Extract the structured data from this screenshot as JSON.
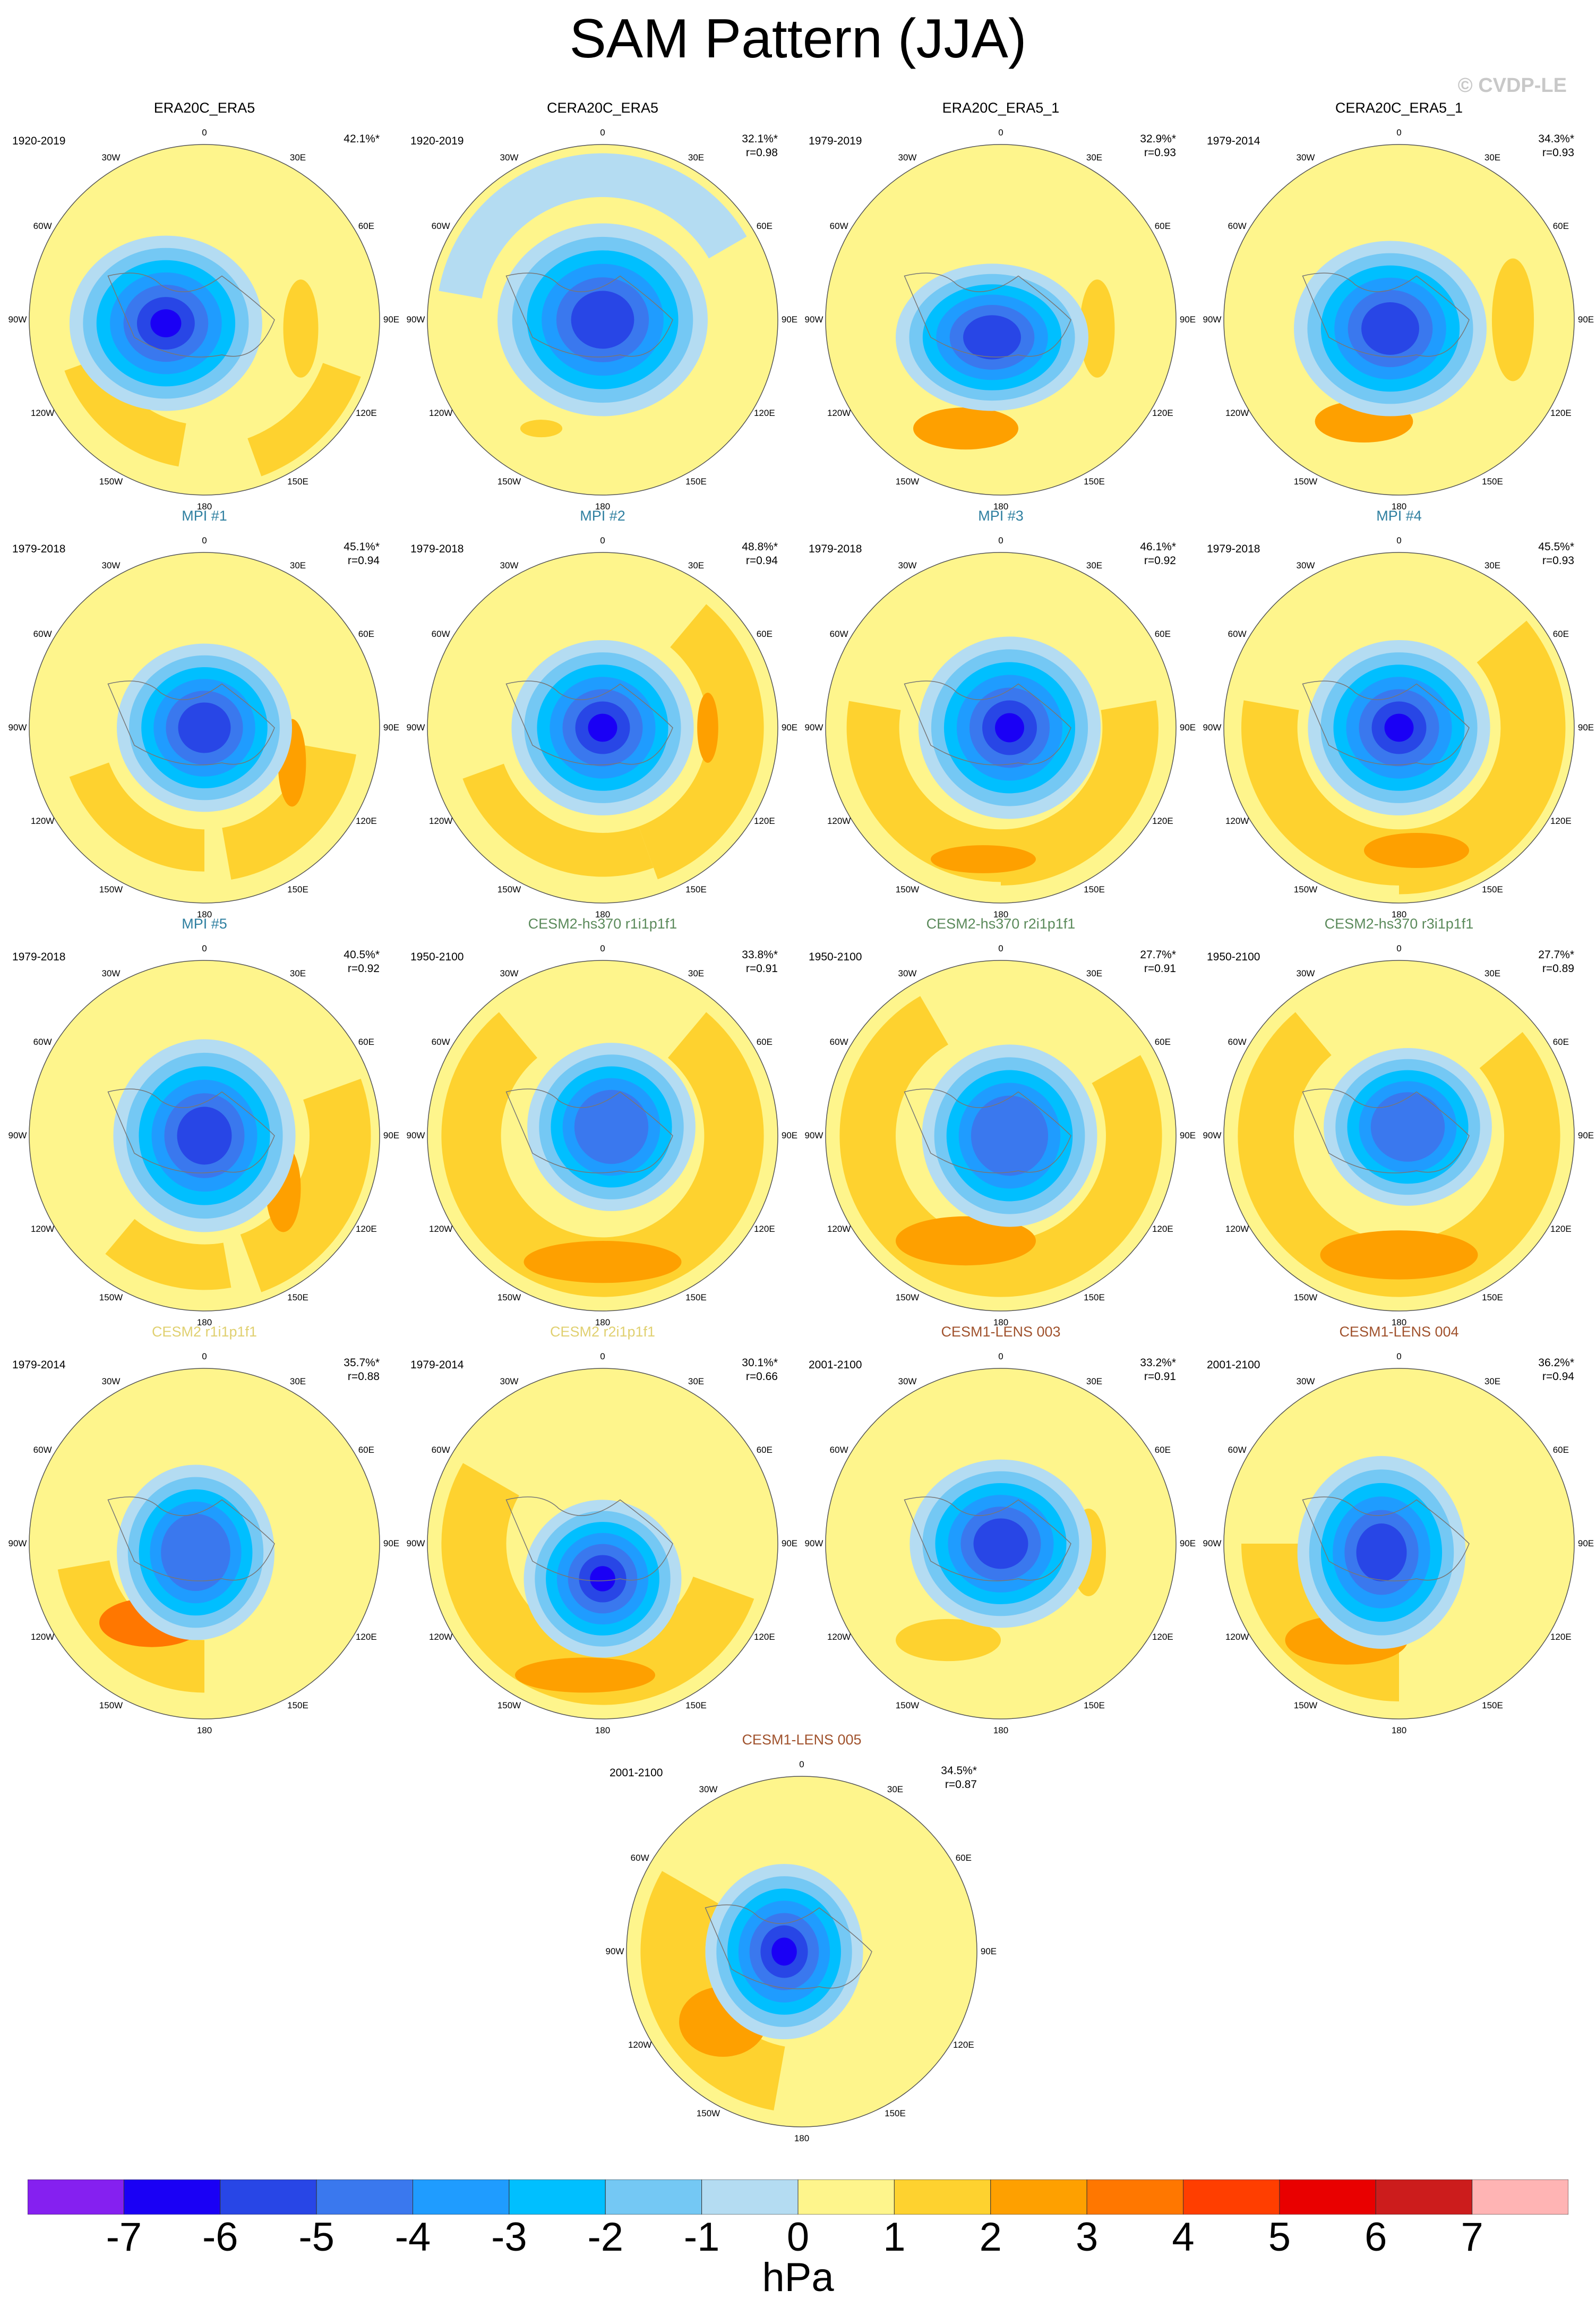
{
  "title": "SAM Pattern (JJA)",
  "watermark": "© CVDP-LE",
  "lon_labels": [
    "0",
    "30E",
    "60E",
    "90E",
    "120E",
    "150E",
    "180",
    "150W",
    "120W",
    "90W",
    "60W",
    "30W"
  ],
  "colorbar": {
    "ticks": [
      "-7",
      "-6",
      "-5",
      "-4",
      "-3",
      "-2",
      "-1",
      "0",
      "1",
      "2",
      "3",
      "4",
      "5",
      "6",
      "7"
    ],
    "colors": [
      "#8520f0",
      "#1a00f5",
      "#2846e6",
      "#3a78ee",
      "#1f9cff",
      "#00bfff",
      "#74c8f4",
      "#b4dcf2",
      "#fef58c",
      "#fed22f",
      "#fea000",
      "#ff7700",
      "#ff3e00",
      "#e90000",
      "#cc1c1c",
      "#ffb4b4"
    ],
    "units": "hPa"
  },
  "panels": [
    {
      "title": "ERA20C_ERA5",
      "title_color": "#000000",
      "period": "1920-2019",
      "pct": "42.1%*",
      "r": ""
    },
    {
      "title": "CERA20C_ERA5",
      "title_color": "#000000",
      "period": "1920-2019",
      "pct": "32.1%*",
      "r": "r=0.98"
    },
    {
      "title": "ERA20C_ERA5_1",
      "title_color": "#000000",
      "period": "1979-2019",
      "pct": "32.9%*",
      "r": "r=0.93"
    },
    {
      "title": "CERA20C_ERA5_1",
      "title_color": "#000000",
      "period": "1979-2014",
      "pct": "34.3%*",
      "r": "r=0.93"
    },
    {
      "title": "MPI #1",
      "title_color": "#2e7fa0",
      "period": "1979-2018",
      "pct": "45.1%*",
      "r": "r=0.94"
    },
    {
      "title": "MPI #2",
      "title_color": "#2e7fa0",
      "period": "1979-2018",
      "pct": "48.8%*",
      "r": "r=0.94"
    },
    {
      "title": "MPI #3",
      "title_color": "#2e7fa0",
      "period": "1979-2018",
      "pct": "46.1%*",
      "r": "r=0.92"
    },
    {
      "title": "MPI #4",
      "title_color": "#2e7fa0",
      "period": "1979-2018",
      "pct": "45.5%*",
      "r": "r=0.93"
    },
    {
      "title": "MPI #5",
      "title_color": "#2e7fa0",
      "period": "1979-2018",
      "pct": "40.5%*",
      "r": "r=0.92"
    },
    {
      "title": "CESM2-hs370 r1i1p1f1",
      "title_color": "#5b8a5b",
      "period": "1950-2100",
      "pct": "33.8%*",
      "r": "r=0.91"
    },
    {
      "title": "CESM2-hs370 r2i1p1f1",
      "title_color": "#5b8a5b",
      "period": "1950-2100",
      "pct": "27.7%*",
      "r": "r=0.91"
    },
    {
      "title": "CESM2-hs370 r3i1p1f1",
      "title_color": "#5b8a5b",
      "period": "1950-2100",
      "pct": "27.7%*",
      "r": "r=0.89"
    },
    {
      "title": "CESM2 r1i1p1f1",
      "title_color": "#e0d070",
      "period": "1979-2014",
      "pct": "35.7%*",
      "r": "r=0.88"
    },
    {
      "title": "CESM2 r2i1p1f1",
      "title_color": "#e0d070",
      "period": "1979-2014",
      "pct": "30.1%*",
      "r": "r=0.66"
    },
    {
      "title": "CESM1-LENS 003",
      "title_color": "#a0522d",
      "period": "2001-2100",
      "pct": "33.2%*",
      "r": "r=0.91"
    },
    {
      "title": "CESM1-LENS 004",
      "title_color": "#a0522d",
      "period": "2001-2100",
      "pct": "36.2%*",
      "r": "r=0.94"
    },
    {
      "title": "CESM1-LENS 005",
      "title_color": "#a0522d",
      "period": "2001-2100",
      "pct": "34.5%*",
      "r": "r=0.87"
    }
  ]
}
